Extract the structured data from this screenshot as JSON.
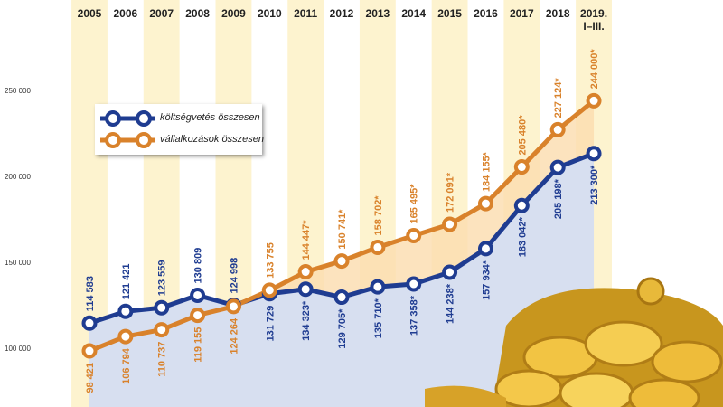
{
  "chart_data": {
    "type": "line",
    "categories": [
      "2005",
      "2006",
      "2007",
      "2008",
      "2009",
      "2010",
      "2011",
      "2012",
      "2013",
      "2014",
      "2015",
      "2016",
      "2017",
      "2018",
      "2019. I–III."
    ],
    "series": [
      {
        "name": "költségvetés összesen",
        "color": "#1f3c91",
        "values": [
          114583,
          121421,
          123559,
          130809,
          124998,
          131729,
          134323,
          129705,
          135710,
          137358,
          144238,
          157934,
          183042,
          205198,
          213300
        ],
        "value_labels": [
          "114 583",
          "121 421",
          "123 559",
          "130 809",
          "124 998",
          "131 729",
          "134 323*",
          "129 705*",
          "135 710*",
          "137 358*",
          "144 238*",
          "157 934*",
          "183 042*",
          "205 198*",
          "213 300*"
        ]
      },
      {
        "name": "vállalkozások összesen",
        "color": "#d9822b",
        "values": [
          98421,
          106794,
          110737,
          119155,
          124264,
          133755,
          144447,
          150741,
          158702,
          165495,
          172091,
          184155,
          205480,
          227124,
          244000
        ],
        "value_labels": [
          "98 421",
          "106 794",
          "110 737",
          "119 155",
          "124 264",
          "133 755",
          "144 447*",
          "150 741*",
          "158 702*",
          "165 495*",
          "172 091*",
          "184 155*",
          "205 480*",
          "227 124*",
          "244 000*"
        ]
      }
    ],
    "ylim": [
      65800,
      302600
    ],
    "yticks": [
      {
        "value": 100000,
        "label": "100 000"
      },
      {
        "value": 150000,
        "label": "150 000"
      },
      {
        "value": 200000,
        "label": "200 000"
      },
      {
        "value": 250000,
        "label": "250 000"
      }
    ]
  }
}
